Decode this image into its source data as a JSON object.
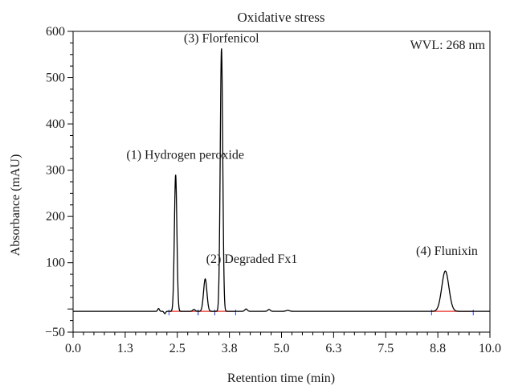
{
  "chart_data": {
    "type": "line",
    "title": "Oxidative stress",
    "xlabel": "Retention time (min)",
    "ylabel": "Absorbance (mAU)",
    "xlim": [
      0,
      10
    ],
    "ylim": [
      -50,
      600
    ],
    "x_tick_values": [
      0,
      1.25,
      2.5,
      3.75,
      5,
      6.25,
      7.5,
      8.75,
      10
    ],
    "x_tick_labels": [
      "0.0",
      "1.3",
      "2.5",
      "3.8",
      "5.0",
      "6.3",
      "7.5",
      "8.8",
      "10.0"
    ],
    "y_tick_values": [
      -50,
      100,
      200,
      300,
      400,
      500,
      600
    ],
    "y_tick_labels": [
      "−50",
      "100",
      "200",
      "300",
      "400",
      "500",
      "600"
    ],
    "wavelength_label": "WVL: 268 nm",
    "grid": false,
    "baseline": -5,
    "peaks": [
      {
        "label": "(1) Hydrogen peroxide",
        "rt": 2.46,
        "height": 290
      },
      {
        "label": "(2) Degraded Fx1",
        "rt": 3.17,
        "height": 65
      },
      {
        "label": "(3) Florfenicol",
        "rt": 3.56,
        "height": 563
      },
      {
        "label": "(4) Flunixin",
        "rt": 8.93,
        "height": 82
      }
    ],
    "integration_color": "#e8322a",
    "trace_color": "#000000"
  }
}
